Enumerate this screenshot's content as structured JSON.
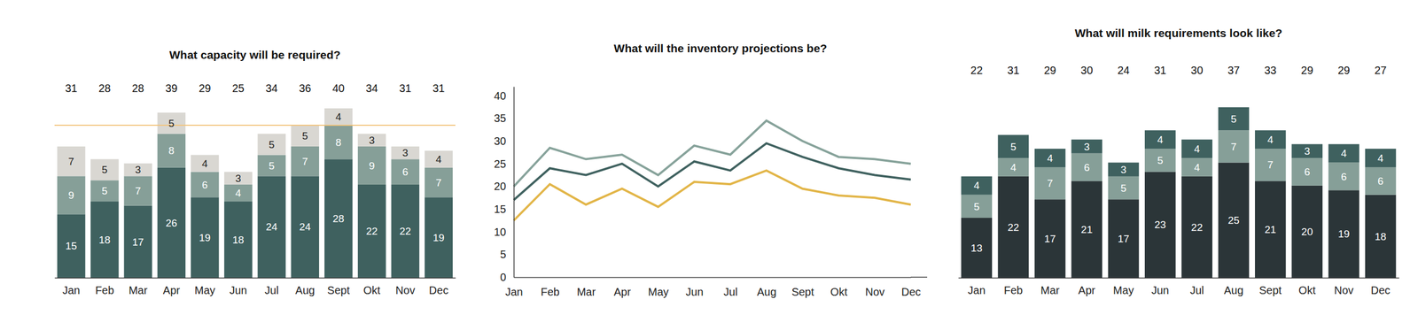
{
  "chart_data": [
    {
      "type": "bar",
      "stacked": true,
      "data_labels": true,
      "tick_labels": "x",
      "title": "What capacity will be required?",
      "categories": [
        "Jan",
        "Feb",
        "Mar",
        "Apr",
        "May",
        "Jun",
        "Jul",
        "Aug",
        "Sept",
        "Okt",
        "Nov",
        "Dec"
      ],
      "series": [
        {
          "color": "#3f615f",
          "values": [
            15,
            18,
            17,
            26,
            19,
            18,
            24,
            24,
            28,
            22,
            22,
            19
          ]
        },
        {
          "color": "#869f98",
          "values": [
            9,
            5,
            7,
            8,
            6,
            4,
            5,
            7,
            8,
            9,
            6,
            7
          ]
        },
        {
          "color": "#d9d7d2",
          "values": [
            7,
            5,
            3,
            5,
            4,
            3,
            5,
            5,
            4,
            3,
            3,
            4
          ]
        }
      ],
      "totals": [
        31,
        28,
        28,
        39,
        29,
        25,
        34,
        36,
        40,
        34,
        31,
        31
      ],
      "reference_line": {
        "value": 36,
        "color": "#f2c47c"
      },
      "ylim": [
        0,
        40
      ]
    },
    {
      "type": "line",
      "title": "What will the inventory projections be?",
      "categories": [
        "Jan",
        "Feb",
        "Mar",
        "Apr",
        "May",
        "Jun",
        "Jul",
        "Aug",
        "Sept",
        "Okt",
        "Nov",
        "Dec"
      ],
      "series": [
        {
          "color": "#86a29a",
          "values": [
            20,
            28.5,
            26,
            27,
            22.5,
            29,
            27,
            34.5,
            30,
            26.5,
            26,
            25
          ]
        },
        {
          "color": "#3f615f",
          "values": [
            17,
            24,
            22.5,
            25,
            20,
            25.5,
            23.5,
            29.5,
            26.5,
            24,
            22.5,
            21.5
          ]
        },
        {
          "color": "#e2b547",
          "values": [
            12.5,
            20.5,
            16,
            19.5,
            15.5,
            21,
            20.5,
            23.5,
            19.5,
            18,
            17.5,
            16
          ]
        }
      ],
      "ylim": [
        0,
        42
      ],
      "yticks": [
        0,
        5,
        10,
        15,
        20,
        25,
        30,
        35,
        40
      ]
    },
    {
      "type": "bar",
      "stacked": true,
      "data_labels": true,
      "tick_labels": "x",
      "title": "What will milk requirements look like?",
      "categories": [
        "Jan",
        "Feb",
        "Mar",
        "Apr",
        "May",
        "Jun",
        "Jul",
        "Aug",
        "Sept",
        "Okt",
        "Nov",
        "Dec"
      ],
      "series": [
        {
          "color": "#2b3538",
          "values": [
            13,
            22,
            17,
            21,
            17,
            23,
            22,
            25,
            21,
            20,
            19,
            18
          ]
        },
        {
          "color": "#869f98",
          "values": [
            5,
            4,
            7,
            6,
            5,
            5,
            4,
            7,
            7,
            6,
            6,
            6
          ]
        },
        {
          "color": "#3f615f",
          "values": [
            4,
            5,
            4,
            3,
            3,
            4,
            4,
            5,
            4,
            3,
            4,
            4
          ]
        }
      ],
      "totals": [
        22,
        31,
        29,
        30,
        24,
        31,
        30,
        37,
        33,
        29,
        29,
        27
      ],
      "ylim": [
        0,
        37
      ]
    }
  ]
}
